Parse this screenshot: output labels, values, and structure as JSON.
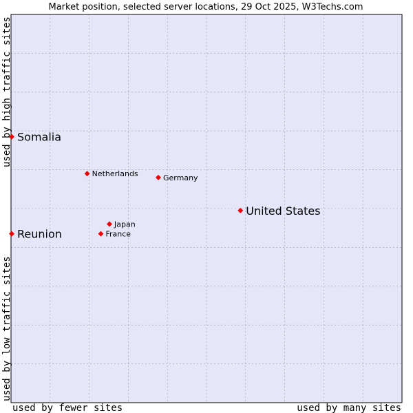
{
  "chart_data": {
    "type": "scatter",
    "title": "Market position, selected server locations, 29 Oct 2025, W3Techs.com",
    "xlabel_left": "used by fewer sites",
    "xlabel_right": "used by many sites",
    "ylabel_bottom": "used by low traffic sites",
    "ylabel_top": "used by high traffic sites",
    "xlim": [
      0,
      10
    ],
    "ylim": [
      0,
      10
    ],
    "grid": true,
    "colors": {
      "plot_bg": "#e6e6fa",
      "grid": "#9999aa",
      "marker": "#ee0000",
      "frame": "#000000"
    },
    "points": [
      {
        "name": "Somalia",
        "x": 0.0,
        "y": 6.85,
        "emphasis": true
      },
      {
        "name": "Netherlands",
        "x": 1.93,
        "y": 5.9,
        "emphasis": false
      },
      {
        "name": "Germany",
        "x": 3.75,
        "y": 5.8,
        "emphasis": false
      },
      {
        "name": "United States",
        "x": 5.85,
        "y": 4.95,
        "emphasis": true
      },
      {
        "name": "Japan",
        "x": 2.5,
        "y": 4.6,
        "emphasis": false
      },
      {
        "name": "France",
        "x": 2.28,
        "y": 4.35,
        "emphasis": false
      },
      {
        "name": "Reunion",
        "x": 0.0,
        "y": 4.35,
        "emphasis": true
      }
    ]
  }
}
